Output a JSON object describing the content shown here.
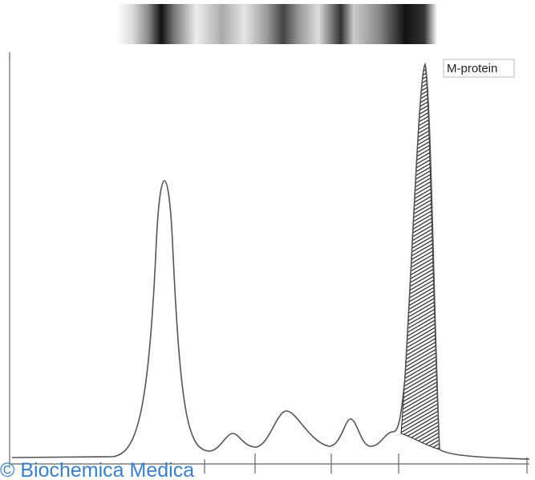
{
  "annotation": {
    "label": "M-protein"
  },
  "footer": {
    "copyright": "© Biochemica Medica"
  }
}
